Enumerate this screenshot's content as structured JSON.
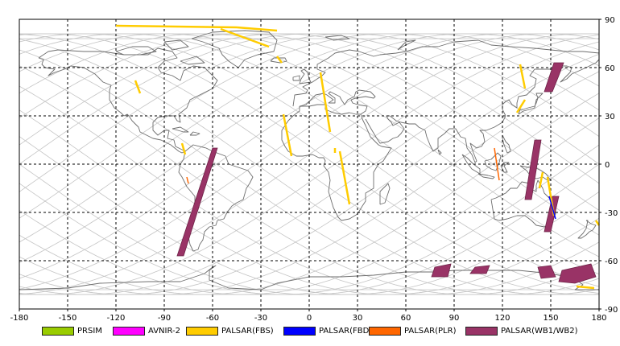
{
  "map": {
    "x_ticks": [
      "-180",
      "-150",
      "-120",
      "-90",
      "-60",
      "-30",
      "0",
      "30",
      "60",
      "90",
      "120",
      "150",
      "180"
    ],
    "y_ticks": [
      "90",
      "60",
      "30",
      "0",
      "-30",
      "-60",
      "-90"
    ]
  },
  "colors": {
    "frame": "#000000",
    "grid": "#000000",
    "coast": "#6e6e6e",
    "orbit": "#c4c4c4",
    "prsim": "#99cc00",
    "avnir2": "#ff00ff",
    "palsar_fbs": "#ffcc00",
    "palsar_fbd": "#0000ff",
    "palsar_plr": "#ff6600",
    "palsar_wb": "#993366"
  },
  "legend": [
    {
      "label": "PRSIM",
      "color": "#99cc00"
    },
    {
      "label": "AVNIR-2",
      "color": "#ff00ff"
    },
    {
      "label": "PALSAR(FBS)",
      "color": "#ffcc00"
    },
    {
      "label": "PALSAR(FBD)",
      "color": "#0000ff"
    },
    {
      "label": "PALSAR(PLR)",
      "color": "#ff6600"
    },
    {
      "label": "PALSAR(WB1/WB2)",
      "color": "#993366"
    }
  ],
  "swaths": {
    "palsar_wb": [
      [
        [
          -60,
          10
        ],
        [
          -57,
          10
        ],
        [
          -78,
          -57
        ],
        [
          -82,
          -57
        ]
      ],
      [
        [
          152,
          63
        ],
        [
          158,
          63
        ],
        [
          155,
          55
        ],
        [
          151,
          45
        ],
        [
          146,
          45
        ]
      ],
      [
        [
          140,
          15
        ],
        [
          144,
          15
        ],
        [
          138,
          -22
        ],
        [
          134,
          -22
        ]
      ],
      [
        [
          151,
          -20
        ],
        [
          155,
          -20
        ],
        [
          150,
          -42
        ],
        [
          146,
          -42
        ]
      ],
      [
        [
          78,
          -64
        ],
        [
          88,
          -62
        ],
        [
          86,
          -70
        ],
        [
          76,
          -70
        ]
      ],
      [
        [
          103,
          -64
        ],
        [
          112,
          -63
        ],
        [
          110,
          -68
        ],
        [
          100,
          -68
        ]
      ],
      [
        [
          142,
          -64
        ],
        [
          150,
          -63
        ],
        [
          153,
          -70
        ],
        [
          144,
          -71
        ]
      ],
      [
        [
          157,
          -66
        ],
        [
          175,
          -62
        ],
        [
          178,
          -70
        ],
        [
          165,
          -74
        ],
        [
          155,
          -73
        ]
      ]
    ],
    "palsar_fbs": [
      [
        [
          -120,
          86
        ],
        [
          -45,
          85
        ]
      ],
      [
        [
          -45,
          85
        ],
        [
          -20,
          83
        ]
      ],
      [
        [
          -55,
          84
        ],
        [
          -25,
          73
        ]
      ],
      [
        [
          -20,
          67
        ],
        [
          -17,
          63
        ]
      ],
      [
        [
          -108,
          52
        ],
        [
          -105,
          44
        ]
      ],
      [
        [
          -79,
          13
        ],
        [
          -77,
          6
        ]
      ],
      [
        [
          -16,
          31
        ],
        [
          -11,
          5
        ]
      ],
      [
        [
          7,
          57
        ],
        [
          13,
          20
        ]
      ],
      [
        [
          19,
          8
        ],
        [
          25,
          -25
        ]
      ],
      [
        [
          16,
          10
        ],
        [
          16,
          7
        ]
      ],
      [
        [
          131,
          62
        ],
        [
          134,
          47
        ]
      ],
      [
        [
          134,
          40
        ],
        [
          129,
          32
        ]
      ],
      [
        [
          148,
          -8
        ],
        [
          152,
          -32
        ]
      ],
      [
        [
          145,
          -5
        ],
        [
          143,
          -15
        ]
      ],
      [
        [
          166,
          -76
        ],
        [
          177,
          -77
        ]
      ],
      [
        [
          178,
          -35
        ],
        [
          180,
          -38
        ]
      ]
    ],
    "palsar_fbd": [
      [
        [
          149,
          -20
        ],
        [
          153,
          -34
        ]
      ]
    ],
    "palsar_plr": [
      [
        [
          115,
          10
        ],
        [
          118,
          -10
        ]
      ],
      [
        [
          -76,
          -8
        ],
        [
          -75,
          -12
        ]
      ]
    ]
  }
}
